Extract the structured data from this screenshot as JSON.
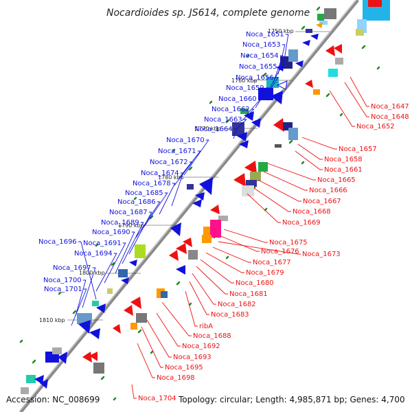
{
  "title": "Nocardioides sp. JS614, complete genome",
  "accession": "Accession: NC_008699",
  "topology": "Topology: circular; Length: 4,985,871 bp; Genes: 4,700",
  "colors": {
    "minus": "#1111dd",
    "plus": "#ee1111",
    "backbone": "#888888",
    "tick": "#228822"
  },
  "bp_labels": [
    "1750 kbp",
    "1760 kbp",
    "1770 kbp",
    "1780 kbp",
    "1790 kbp",
    "1800 kbp",
    "1810 kbp"
  ],
  "left_genes": [
    "Noca_1651",
    "Noca_1653",
    "Noca_1654",
    "Noca_1655",
    "Noca_1656",
    "Noca_1659",
    "Noca_1660",
    "Noca_1662",
    "Noca_1663",
    "Noca_1664",
    "Noca_1670",
    "Noca_1671",
    "Noca_1672",
    "Noca_1674",
    "Noca_1678",
    "Noca_1685",
    "Noca_1686",
    "Noca_1687",
    "Noca_1689",
    "Noca_1690",
    "Noca_1696",
    "Noca_1691",
    "Noca_1694",
    "Noca_1697",
    "Noca_1700",
    "Noca_1701"
  ],
  "right_genes": [
    "Noca_1647",
    "Noca_1648",
    "Noca_1652",
    "Noca_1657",
    "Noca_1658",
    "Noca_1661",
    "Noca_1665",
    "Noca_1666",
    "Noca_1667",
    "Noca_1668",
    "Noca_1669",
    "Noca_1675",
    "Noca_1676",
    "Noca_1673",
    "Noca_1677",
    "Noca_1679",
    "Noca_1680",
    "Noca_1681",
    "Noca_1682",
    "Noca_1683",
    "ribA",
    "Noca_1688",
    "Noca_1692",
    "Noca_1693",
    "Noca_1695",
    "Noca_1698",
    "Noca_1704"
  ]
}
